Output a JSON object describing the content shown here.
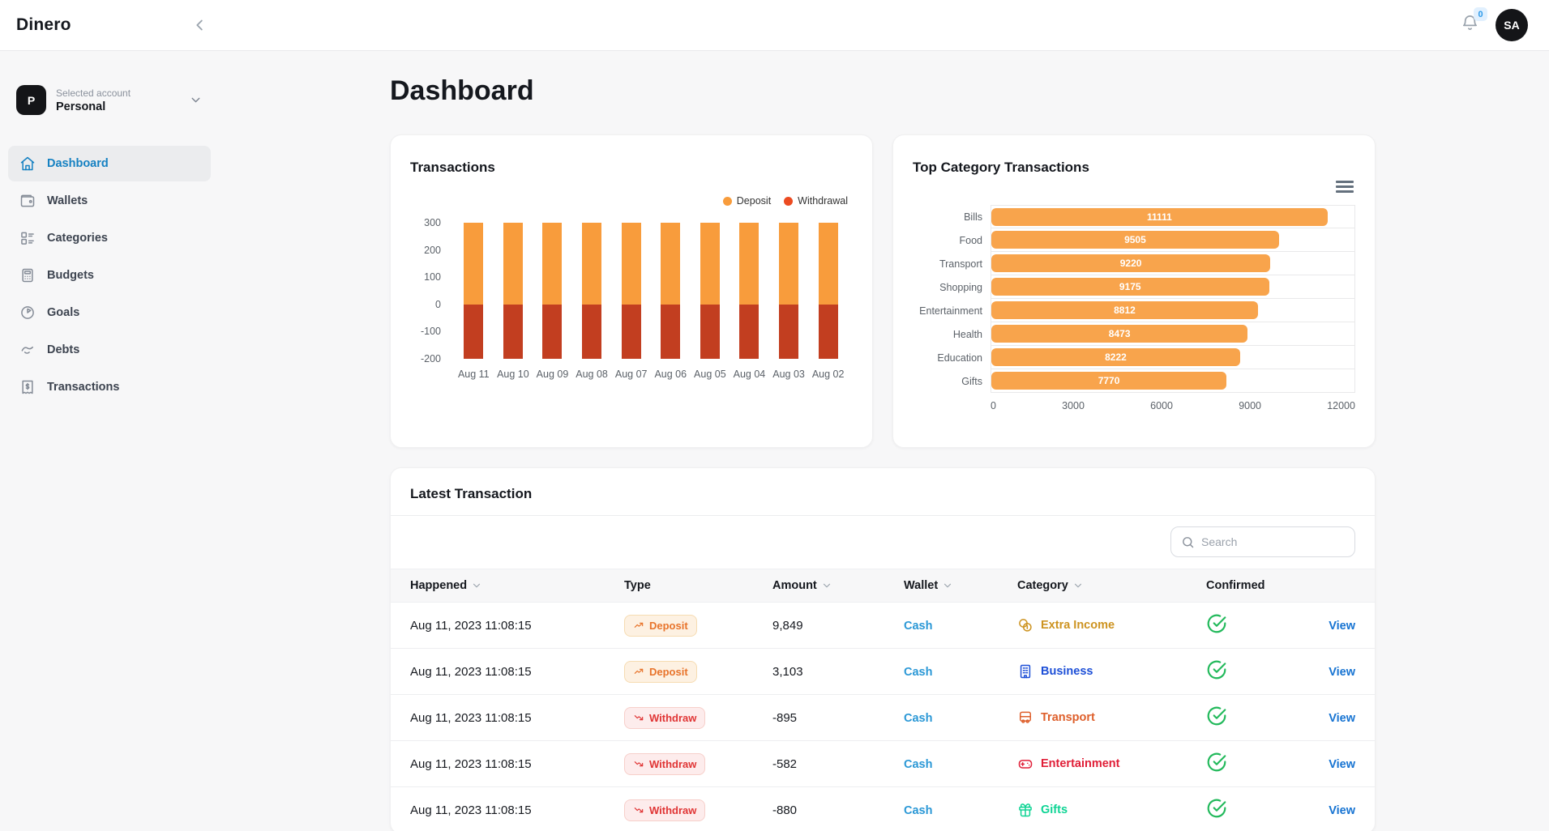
{
  "app": {
    "name": "Dinero"
  },
  "topbar": {
    "notifications_count": "0",
    "avatar_initials": "SA"
  },
  "sidebar": {
    "account": {
      "initial": "P",
      "label": "Selected account",
      "name": "Personal"
    },
    "items": [
      {
        "label": "Dashboard",
        "icon": "home",
        "active": true
      },
      {
        "label": "Wallets",
        "icon": "wallet",
        "active": false
      },
      {
        "label": "Categories",
        "icon": "categories",
        "active": false
      },
      {
        "label": "Budgets",
        "icon": "calculator",
        "active": false
      },
      {
        "label": "Goals",
        "icon": "goal",
        "active": false
      },
      {
        "label": "Debts",
        "icon": "handshake",
        "active": false
      },
      {
        "label": "Transactions",
        "icon": "receipt",
        "active": false
      }
    ]
  },
  "main": {
    "title": "Dashboard"
  },
  "chart_data": [
    {
      "type": "bar",
      "variant": "stacked-column",
      "title": "Transactions",
      "categories": [
        "Aug 11",
        "Aug 10",
        "Aug 09",
        "Aug 08",
        "Aug 07",
        "Aug 06",
        "Aug 05",
        "Aug 04",
        "Aug 03",
        "Aug 02"
      ],
      "series": [
        {
          "name": "Deposit",
          "legend_color": "#F89C3C",
          "bar_color": "#F89C3C",
          "values": [
            300,
            300,
            300,
            300,
            300,
            300,
            300,
            300,
            300,
            300
          ]
        },
        {
          "name": "Withdrawal",
          "legend_color": "#EC4B21",
          "bar_color": "#C23E20",
          "values": [
            -200,
            -200,
            -200,
            -200,
            -200,
            -200,
            -200,
            -200,
            -200,
            -200
          ]
        }
      ],
      "ylim": [
        -200,
        300
      ],
      "yticks": [
        300,
        200,
        100,
        0,
        -100,
        -200
      ],
      "legend_position": "top-right",
      "grid": false
    },
    {
      "type": "bar",
      "variant": "horizontal",
      "title": "Top Category Transactions",
      "categories": [
        "Bills",
        "Food",
        "Transport",
        "Shopping",
        "Entertainment",
        "Health",
        "Education",
        "Gifts"
      ],
      "values": [
        11111,
        9505,
        9220,
        9175,
        8812,
        8473,
        8222,
        7770
      ],
      "bar_color": "#F8A44C",
      "value_label_color": "#ffffff",
      "xlim": [
        0,
        12000
      ],
      "xticks": [
        0,
        3000,
        6000,
        9000,
        12000
      ],
      "grid": true
    }
  ],
  "table": {
    "title": "Latest Transaction",
    "search_placeholder": "Search",
    "view_label": "View",
    "columns": [
      {
        "label": "Happened",
        "sortable": true
      },
      {
        "label": "Type",
        "sortable": false
      },
      {
        "label": "Amount",
        "sortable": true
      },
      {
        "label": "Wallet",
        "sortable": true
      },
      {
        "label": "Category",
        "sortable": true
      },
      {
        "label": "Confirmed",
        "sortable": false
      }
    ],
    "rows": [
      {
        "happened": "Aug 11, 2023 11:08:15",
        "type": "Deposit",
        "amount": "9,849",
        "wallet": "Cash",
        "category": "Extra Income",
        "category_icon": "coins",
        "category_color": "#CD9320",
        "confirmed": true
      },
      {
        "happened": "Aug 11, 2023 11:08:15",
        "type": "Deposit",
        "amount": "3,103",
        "wallet": "Cash",
        "category": "Business",
        "category_icon": "building",
        "category_color": "#1D4FD7",
        "confirmed": true
      },
      {
        "happened": "Aug 11, 2023 11:08:15",
        "type": "Withdraw",
        "amount": "-895",
        "wallet": "Cash",
        "category": "Transport",
        "category_icon": "bus",
        "category_color": "#DE5F2B",
        "confirmed": true
      },
      {
        "happened": "Aug 11, 2023 11:08:15",
        "type": "Withdraw",
        "amount": "-582",
        "wallet": "Cash",
        "category": "Entertainment",
        "category_icon": "gamepad",
        "category_color": "#E01E37",
        "confirmed": true
      },
      {
        "happened": "Aug 11, 2023 11:08:15",
        "type": "Withdraw",
        "amount": "-880",
        "wallet": "Cash",
        "category": "Gifts",
        "category_icon": "gift",
        "category_color": "#0ED494",
        "confirmed": true
      }
    ]
  }
}
